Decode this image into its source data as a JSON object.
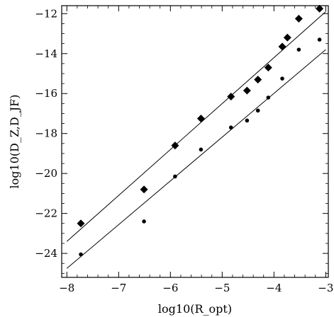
{
  "chart_data": {
    "type": "scatter",
    "title": "",
    "xlabel": "log10(R_opt)",
    "ylabel": "log10(D_Z,D_JF)",
    "xlim": [
      -8.1,
      -2.95
    ],
    "ylim": [
      -25.2,
      -11.6
    ],
    "x_ticks": [
      -8,
      -7,
      -6,
      -5,
      -4,
      -3
    ],
    "y_ticks": [
      -24,
      -22,
      -20,
      -18,
      -16,
      -14,
      -12
    ],
    "x_tick_labels": [
      "-8",
      "-7",
      "-6",
      "-5",
      "-4",
      "-3"
    ],
    "y_tick_labels": [
      "-24",
      "-22",
      "-20",
      "-18",
      "-16",
      "-14",
      "-12"
    ],
    "grid": false,
    "legend": "none",
    "series": [
      {
        "marker": "diamond",
        "x": [
          -7.73,
          -6.51,
          -5.91,
          -5.41,
          -4.83,
          -4.52,
          -4.31,
          -4.11,
          -3.84,
          -3.74,
          -3.52,
          -3.12
        ],
        "y": [
          -22.5,
          -20.8,
          -18.6,
          -17.25,
          -16.15,
          -15.85,
          -15.3,
          -14.7,
          -13.65,
          -13.2,
          -12.25,
          -11.75
        ]
      },
      {
        "marker": "dot",
        "x": [
          -7.73,
          -6.51,
          -5.91,
          -5.41,
          -4.83,
          -4.52,
          -4.31,
          -4.11,
          -3.84,
          -3.52,
          -3.12
        ],
        "y": [
          -24.05,
          -22.4,
          -20.15,
          -18.8,
          -17.7,
          -17.35,
          -16.85,
          -16.2,
          -15.25,
          -13.8,
          -13.3
        ]
      }
    ],
    "fit_lines": [
      {
        "x": [
          -8.0,
          -3.0
        ],
        "y": [
          -23.4,
          -11.9
        ]
      },
      {
        "x": [
          -8.0,
          -3.0
        ],
        "y": [
          -24.75,
          -13.8
        ]
      }
    ],
    "colors": {
      "marks": "#000000",
      "background": "#ffffff"
    }
  }
}
